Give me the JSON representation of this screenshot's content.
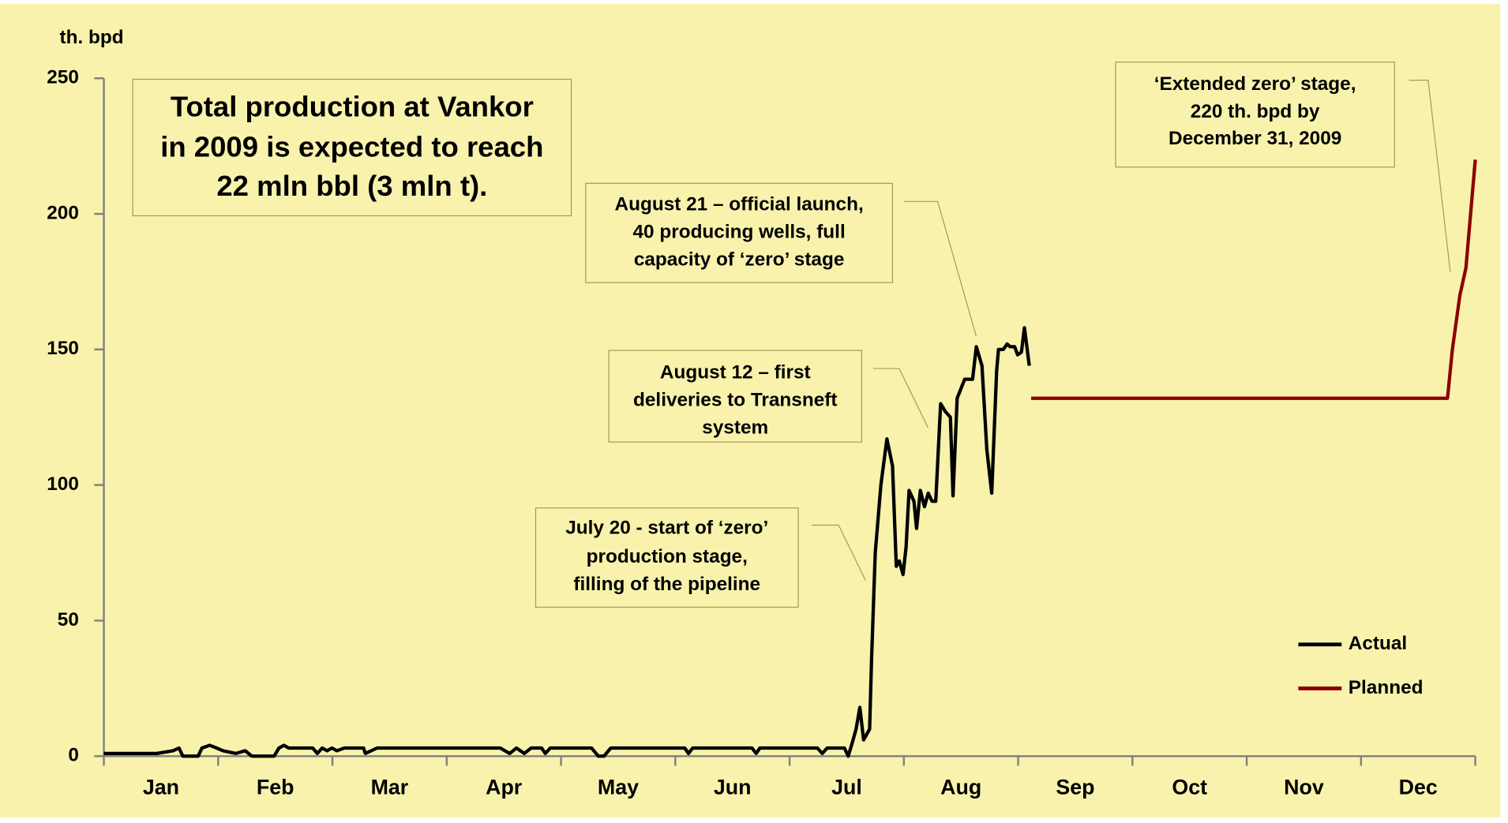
{
  "chart_data": {
    "type": "line",
    "y_axis_label": "th. bpd",
    "categories": [
      "Jan",
      "Feb",
      "Mar",
      "Apr",
      "May",
      "Jun",
      "Jul",
      "Aug",
      "Sep",
      "Oct",
      "Nov",
      "Dec"
    ],
    "xlim": [
      0,
      365
    ],
    "ylim": [
      0,
      250
    ],
    "yticks": [
      0,
      50,
      100,
      150,
      200,
      250
    ],
    "legend": "lower right",
    "series": [
      {
        "name": "Actual",
        "color": "#000000",
        "x": [
          0,
          14.1,
          18.4,
          20.0,
          21.0,
          25.1,
          26.1,
          28.2,
          30.0,
          31.7,
          35.1,
          37.6,
          39.4,
          45.3,
          46.6,
          47.9,
          49.2,
          55.6,
          56.8,
          58.1,
          59.4,
          60.7,
          62.0,
          64.0,
          69.1,
          69.6,
          72.7,
          105.5,
          108.0,
          109.8,
          111.9,
          113.7,
          116.5,
          117.5,
          118.8,
          129.8,
          131.6,
          133.1,
          134.9,
          154.6,
          155.6,
          156.7,
          172.5,
          173.6,
          174.6,
          189.9,
          191.2,
          192.5,
          197.1,
          198.1,
          199.2,
          200.2,
          201.2,
          202.2,
          203.8,
          204.3,
          205.3,
          206.8,
          208.4,
          209.9,
          210.9,
          211.7,
          212.7,
          213.5,
          214.3,
          215.6,
          216.3,
          217.3,
          218.4,
          219.4,
          220.4,
          221.4,
          222.7,
          224.0,
          225.3,
          226.0,
          227.1,
          229.1,
          231.2,
          232.2,
          233.7,
          235.0,
          236.3,
          237.6,
          238.1,
          239.4,
          240.4,
          241.2,
          242.4,
          243.2,
          244.2,
          245.0,
          246.3
        ],
        "values": [
          1,
          1,
          2,
          3,
          0,
          0,
          3,
          4,
          3,
          2,
          1,
          2,
          0,
          0,
          3,
          4,
          3,
          3,
          1,
          3,
          2,
          3,
          2,
          3,
          3,
          1,
          3,
          3,
          1,
          3,
          1,
          3,
          3,
          1,
          3,
          3,
          0,
          0,
          3,
          3,
          1,
          3,
          3,
          1,
          3,
          3,
          1,
          3,
          3,
          0,
          5,
          10,
          18,
          6,
          10,
          35,
          75,
          100,
          117,
          107,
          70,
          72,
          67,
          77,
          98,
          94,
          84,
          98,
          92,
          97,
          94,
          94,
          130,
          127,
          125,
          96,
          132,
          139,
          139,
          151,
          144,
          113,
          97,
          142,
          150,
          150,
          152,
          151,
          151,
          148,
          149,
          158,
          144
        ]
      },
      {
        "name": "Planned",
        "color": "#8b0000",
        "x": [
          246.8,
          357.6,
          358.9,
          360.9,
          362.5,
          365
        ],
        "values": [
          132,
          132,
          150,
          170,
          180,
          220
        ]
      }
    ],
    "annotations": [
      {
        "lines": [
          "Total production at Vankor",
          "in 2009 is expected to reach",
          "22 mln bbl (3 mln t)."
        ]
      },
      {
        "lines": [
          "August 21 – official launch,",
          "40 producing wells, full",
          "capacity of ‘zero’ stage"
        ]
      },
      {
        "lines": [
          "August 12 – first",
          "deliveries to Transneft",
          "system"
        ]
      },
      {
        "lines": [
          "July 20 - start of ‘zero’",
          "production stage,",
          "filling of the pipeline"
        ]
      },
      {
        "lines": [
          "‘Extended zero’ stage,",
          "220 th. bpd by",
          "December 31, 2009"
        ]
      }
    ]
  }
}
